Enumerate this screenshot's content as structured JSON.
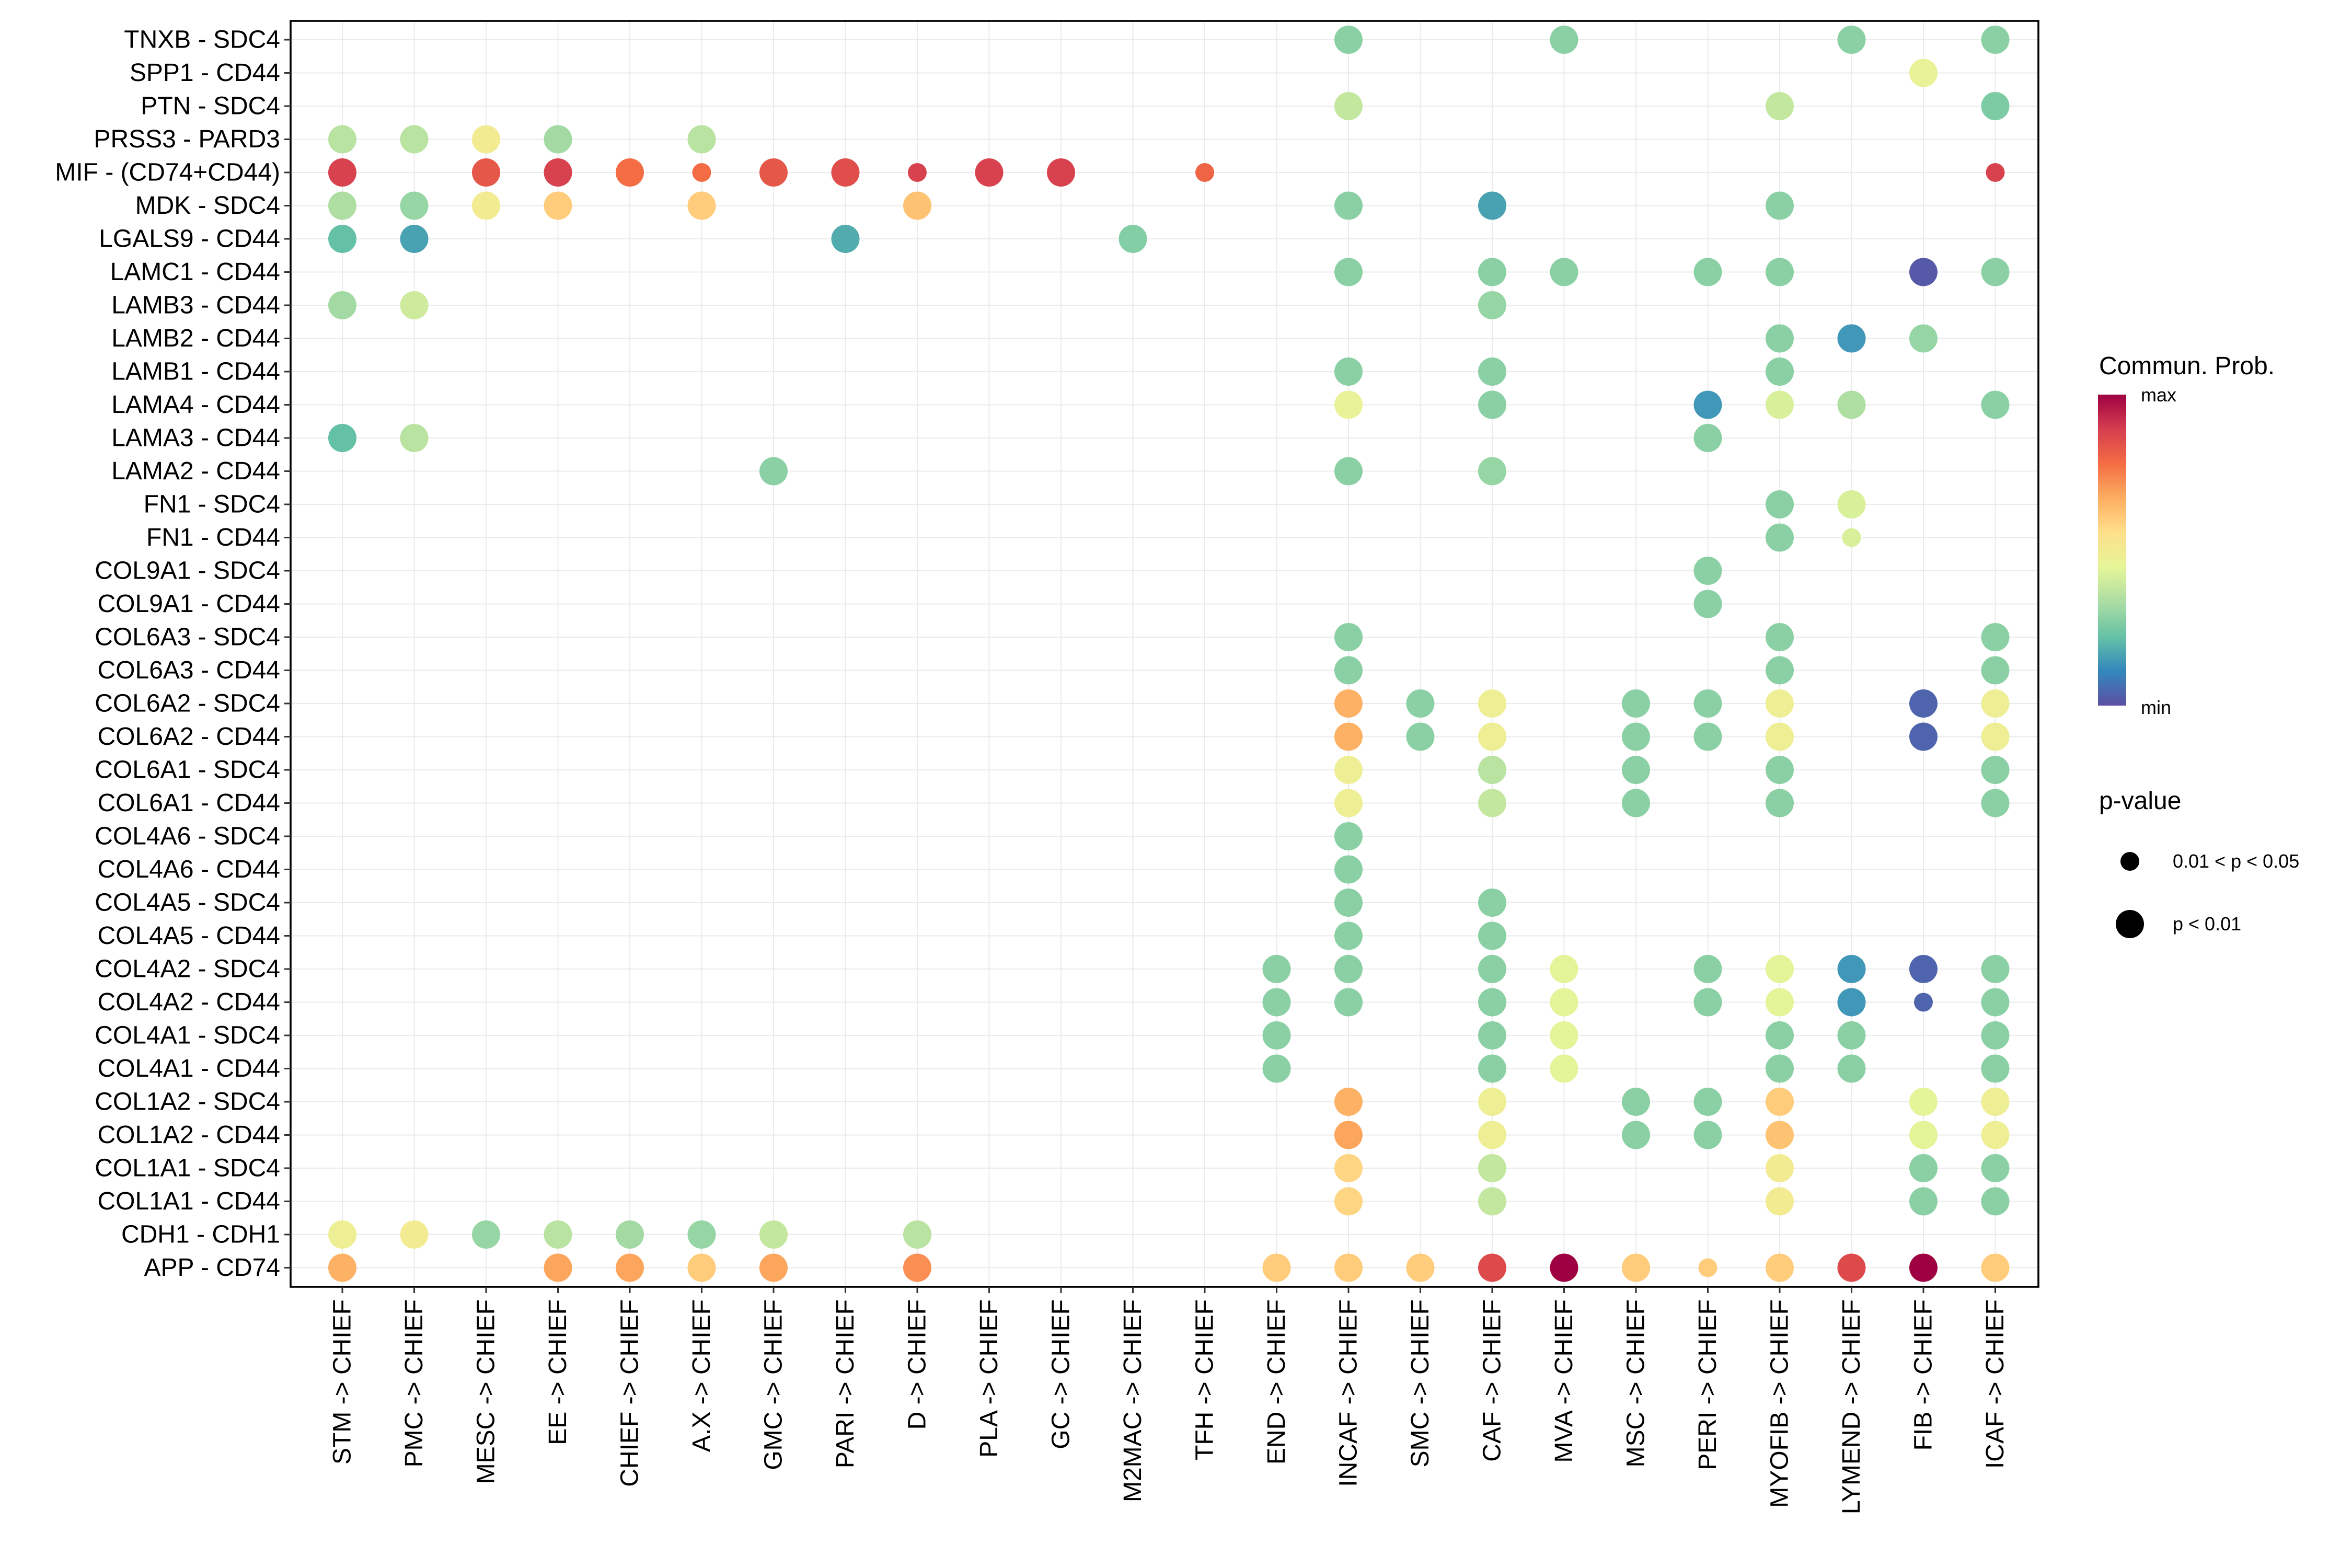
{
  "chart_data": {
    "type": "scatter",
    "subtype": "dot-plot",
    "title": "",
    "xlabel": "",
    "ylabel": "",
    "grid": true,
    "x_categories": [
      "STM -> CHIEF",
      "PMC -> CHIEF",
      "MESC -> CHIEF",
      "EE -> CHIEF",
      "CHIEF -> CHIEF",
      "A.X -> CHIEF",
      "GMC -> CHIEF",
      "PARI -> CHIEF",
      "D -> CHIEF",
      "PLA -> CHIEF",
      "GC -> CHIEF",
      "M2MAC -> CHIEF",
      "TFH -> CHIEF",
      "END -> CHIEF",
      "INCAF -> CHIEF",
      "SMC -> CHIEF",
      "CAF -> CHIEF",
      "MVA -> CHIEF",
      "MSC -> CHIEF",
      "PERI -> CHIEF",
      "MYOFIB -> CHIEF",
      "LYMEND -> CHIEF",
      "FIB -> CHIEF",
      "ICAF -> CHIEF"
    ],
    "y_categories": [
      "TNXB - SDC4",
      "SPP1 - CD44",
      "PTN - SDC4",
      "PRSS3 - PARD3",
      "MIF - (CD74+CD44)",
      "MDK - SDC4",
      "LGALS9 - CD44",
      "LAMC1 - CD44",
      "LAMB3 - CD44",
      "LAMB2 - CD44",
      "LAMB1 - CD44",
      "LAMA4 - CD44",
      "LAMA3 - CD44",
      "LAMA2 - CD44",
      "FN1 - SDC4",
      "FN1 - CD44",
      "COL9A1 - SDC4",
      "COL9A1 - CD44",
      "COL6A3 - SDC4",
      "COL6A3 - CD44",
      "COL6A2 - SDC4",
      "COL6A2 - CD44",
      "COL6A1 - SDC4",
      "COL6A1 - CD44",
      "COL4A6 - SDC4",
      "COL4A6 - CD44",
      "COL4A5 - SDC4",
      "COL4A5 - CD44",
      "COL4A2 - SDC4",
      "COL4A2 - CD44",
      "COL4A1 - SDC4",
      "COL4A1 - CD44",
      "COL1A2 - SDC4",
      "COL1A2 - CD44",
      "COL1A1 - SDC4",
      "COL1A1 - CD44",
      "CDH1 - CDH1",
      "APP - CD74"
    ],
    "point_fields": [
      "x_index",
      "y_index",
      "commun_prob_scaled_0_to_1",
      "pvalue_class (1 = p < 0.01, 0 = 0.01 < p < 0.05)"
    ],
    "points": [
      [
        14,
        0,
        0.28,
        1
      ],
      [
        17,
        0,
        0.28,
        1
      ],
      [
        21,
        0,
        0.28,
        1
      ],
      [
        23,
        0,
        0.28,
        1
      ],
      [
        22,
        1,
        0.46,
        1
      ],
      [
        14,
        2,
        0.38,
        1
      ],
      [
        20,
        2,
        0.38,
        1
      ],
      [
        23,
        2,
        0.26,
        1
      ],
      [
        0,
        3,
        0.36,
        1
      ],
      [
        1,
        3,
        0.36,
        1
      ],
      [
        2,
        3,
        0.5,
        1
      ],
      [
        3,
        3,
        0.32,
        1
      ],
      [
        5,
        3,
        0.36,
        1
      ],
      [
        0,
        4,
        0.88,
        1
      ],
      [
        2,
        4,
        0.83,
        1
      ],
      [
        3,
        4,
        0.88,
        1
      ],
      [
        4,
        4,
        0.78,
        1
      ],
      [
        5,
        4,
        0.78,
        0
      ],
      [
        6,
        4,
        0.83,
        1
      ],
      [
        7,
        4,
        0.85,
        1
      ],
      [
        8,
        4,
        0.88,
        0
      ],
      [
        9,
        4,
        0.88,
        1
      ],
      [
        10,
        4,
        0.88,
        1
      ],
      [
        12,
        4,
        0.8,
        0
      ],
      [
        23,
        4,
        0.88,
        0
      ],
      [
        0,
        5,
        0.34,
        1
      ],
      [
        1,
        5,
        0.3,
        1
      ],
      [
        2,
        5,
        0.5,
        1
      ],
      [
        3,
        5,
        0.6,
        1
      ],
      [
        5,
        5,
        0.6,
        1
      ],
      [
        8,
        5,
        0.62,
        1
      ],
      [
        14,
        5,
        0.28,
        1
      ],
      [
        16,
        5,
        0.16,
        1
      ],
      [
        20,
        5,
        0.28,
        1
      ],
      [
        0,
        6,
        0.22,
        1
      ],
      [
        1,
        6,
        0.16,
        1
      ],
      [
        7,
        6,
        0.18,
        1
      ],
      [
        11,
        6,
        0.27,
        1
      ],
      [
        14,
        7,
        0.28,
        1
      ],
      [
        16,
        7,
        0.28,
        1
      ],
      [
        17,
        7,
        0.28,
        1
      ],
      [
        19,
        7,
        0.28,
        1
      ],
      [
        20,
        7,
        0.28,
        1
      ],
      [
        22,
        7,
        0.02,
        1
      ],
      [
        23,
        7,
        0.28,
        1
      ],
      [
        0,
        8,
        0.32,
        1
      ],
      [
        1,
        8,
        0.4,
        1
      ],
      [
        16,
        8,
        0.3,
        1
      ],
      [
        20,
        9,
        0.28,
        1
      ],
      [
        21,
        9,
        0.14,
        1
      ],
      [
        22,
        9,
        0.3,
        1
      ],
      [
        14,
        10,
        0.28,
        1
      ],
      [
        16,
        10,
        0.28,
        1
      ],
      [
        20,
        10,
        0.28,
        1
      ],
      [
        14,
        11,
        0.46,
        1
      ],
      [
        16,
        11,
        0.28,
        1
      ],
      [
        19,
        11,
        0.14,
        1
      ],
      [
        20,
        11,
        0.42,
        1
      ],
      [
        21,
        11,
        0.34,
        1
      ],
      [
        23,
        11,
        0.28,
        1
      ],
      [
        0,
        12,
        0.22,
        1
      ],
      [
        1,
        12,
        0.36,
        1
      ],
      [
        19,
        12,
        0.28,
        1
      ],
      [
        6,
        13,
        0.28,
        1
      ],
      [
        14,
        13,
        0.28,
        1
      ],
      [
        16,
        13,
        0.3,
        1
      ],
      [
        20,
        14,
        0.28,
        1
      ],
      [
        21,
        14,
        0.42,
        1
      ],
      [
        20,
        15,
        0.28,
        1
      ],
      [
        21,
        15,
        0.42,
        0
      ],
      [
        19,
        16,
        0.28,
        1
      ],
      [
        19,
        17,
        0.28,
        1
      ],
      [
        14,
        18,
        0.28,
        1
      ],
      [
        20,
        18,
        0.28,
        1
      ],
      [
        23,
        18,
        0.28,
        1
      ],
      [
        14,
        19,
        0.28,
        1
      ],
      [
        20,
        19,
        0.28,
        1
      ],
      [
        23,
        19,
        0.28,
        1
      ],
      [
        14,
        20,
        0.66,
        1
      ],
      [
        15,
        20,
        0.28,
        1
      ],
      [
        16,
        20,
        0.48,
        1
      ],
      [
        18,
        20,
        0.28,
        1
      ],
      [
        19,
        20,
        0.28,
        1
      ],
      [
        20,
        20,
        0.48,
        1
      ],
      [
        22,
        20,
        0.04,
        1
      ],
      [
        23,
        20,
        0.48,
        1
      ],
      [
        14,
        21,
        0.66,
        1
      ],
      [
        15,
        21,
        0.28,
        1
      ],
      [
        16,
        21,
        0.48,
        1
      ],
      [
        18,
        21,
        0.28,
        1
      ],
      [
        19,
        21,
        0.28,
        1
      ],
      [
        20,
        21,
        0.48,
        1
      ],
      [
        22,
        21,
        0.04,
        1
      ],
      [
        23,
        21,
        0.48,
        1
      ],
      [
        14,
        22,
        0.48,
        1
      ],
      [
        16,
        22,
        0.36,
        1
      ],
      [
        18,
        22,
        0.28,
        1
      ],
      [
        20,
        22,
        0.28,
        1
      ],
      [
        23,
        22,
        0.28,
        1
      ],
      [
        14,
        23,
        0.48,
        1
      ],
      [
        16,
        23,
        0.38,
        1
      ],
      [
        18,
        23,
        0.28,
        1
      ],
      [
        20,
        23,
        0.28,
        1
      ],
      [
        23,
        23,
        0.28,
        1
      ],
      [
        14,
        24,
        0.28,
        1
      ],
      [
        14,
        25,
        0.28,
        1
      ],
      [
        14,
        26,
        0.28,
        1
      ],
      [
        16,
        26,
        0.28,
        1
      ],
      [
        14,
        27,
        0.28,
        1
      ],
      [
        16,
        27,
        0.28,
        1
      ],
      [
        13,
        28,
        0.28,
        1
      ],
      [
        14,
        28,
        0.28,
        1
      ],
      [
        16,
        28,
        0.28,
        1
      ],
      [
        17,
        28,
        0.44,
        1
      ],
      [
        19,
        28,
        0.28,
        1
      ],
      [
        20,
        28,
        0.44,
        1
      ],
      [
        21,
        28,
        0.14,
        1
      ],
      [
        22,
        28,
        0.04,
        1
      ],
      [
        23,
        28,
        0.28,
        1
      ],
      [
        13,
        29,
        0.28,
        1
      ],
      [
        14,
        29,
        0.28,
        1
      ],
      [
        16,
        29,
        0.28,
        1
      ],
      [
        17,
        29,
        0.44,
        1
      ],
      [
        19,
        29,
        0.28,
        1
      ],
      [
        20,
        29,
        0.44,
        1
      ],
      [
        21,
        29,
        0.14,
        1
      ],
      [
        22,
        29,
        0.04,
        0
      ],
      [
        23,
        29,
        0.28,
        1
      ],
      [
        13,
        30,
        0.28,
        1
      ],
      [
        16,
        30,
        0.28,
        1
      ],
      [
        17,
        30,
        0.44,
        1
      ],
      [
        20,
        30,
        0.28,
        1
      ],
      [
        21,
        30,
        0.28,
        1
      ],
      [
        23,
        30,
        0.28,
        1
      ],
      [
        13,
        31,
        0.28,
        1
      ],
      [
        16,
        31,
        0.28,
        1
      ],
      [
        17,
        31,
        0.44,
        1
      ],
      [
        20,
        31,
        0.28,
        1
      ],
      [
        21,
        31,
        0.28,
        1
      ],
      [
        23,
        31,
        0.28,
        1
      ],
      [
        14,
        32,
        0.66,
        1
      ],
      [
        16,
        32,
        0.48,
        1
      ],
      [
        18,
        32,
        0.28,
        1
      ],
      [
        19,
        32,
        0.28,
        1
      ],
      [
        20,
        32,
        0.6,
        1
      ],
      [
        22,
        32,
        0.44,
        1
      ],
      [
        23,
        32,
        0.48,
        1
      ],
      [
        14,
        33,
        0.68,
        1
      ],
      [
        16,
        33,
        0.48,
        1
      ],
      [
        18,
        33,
        0.28,
        1
      ],
      [
        19,
        33,
        0.28,
        1
      ],
      [
        20,
        33,
        0.62,
        1
      ],
      [
        22,
        33,
        0.44,
        1
      ],
      [
        23,
        33,
        0.48,
        1
      ],
      [
        14,
        34,
        0.58,
        1
      ],
      [
        16,
        34,
        0.38,
        1
      ],
      [
        20,
        34,
        0.5,
        1
      ],
      [
        22,
        34,
        0.28,
        1
      ],
      [
        23,
        34,
        0.28,
        1
      ],
      [
        14,
        35,
        0.58,
        1
      ],
      [
        16,
        35,
        0.38,
        1
      ],
      [
        20,
        35,
        0.5,
        1
      ],
      [
        22,
        35,
        0.28,
        1
      ],
      [
        23,
        35,
        0.28,
        1
      ],
      [
        0,
        36,
        0.48,
        1
      ],
      [
        1,
        36,
        0.5,
        1
      ],
      [
        2,
        36,
        0.3,
        1
      ],
      [
        3,
        36,
        0.36,
        1
      ],
      [
        4,
        36,
        0.32,
        1
      ],
      [
        5,
        36,
        0.3,
        1
      ],
      [
        6,
        36,
        0.38,
        1
      ],
      [
        8,
        36,
        0.36,
        1
      ],
      [
        0,
        37,
        0.66,
        1
      ],
      [
        3,
        37,
        0.68,
        1
      ],
      [
        4,
        37,
        0.68,
        1
      ],
      [
        5,
        37,
        0.6,
        1
      ],
      [
        6,
        37,
        0.68,
        1
      ],
      [
        8,
        37,
        0.72,
        1
      ],
      [
        13,
        37,
        0.6,
        1
      ],
      [
        14,
        37,
        0.6,
        1
      ],
      [
        15,
        37,
        0.6,
        1
      ],
      [
        16,
        37,
        0.86,
        1
      ],
      [
        17,
        37,
        1.0,
        1
      ],
      [
        18,
        37,
        0.6,
        1
      ],
      [
        19,
        37,
        0.6,
        0
      ],
      [
        20,
        37,
        0.6,
        1
      ],
      [
        21,
        37,
        0.86,
        1
      ],
      [
        22,
        37,
        1.0,
        1
      ],
      [
        23,
        37,
        0.6,
        1
      ]
    ],
    "legend": {
      "color_title": "Commun. Prob.",
      "color_max_label": "max",
      "color_min_label": "min",
      "colormap_stops": [
        "#9E0142",
        "#D53E4F",
        "#F46D43",
        "#FDAE61",
        "#FEE08B",
        "#E6F598",
        "#ABDDA4",
        "#66C2A5",
        "#3288BD",
        "#5E4FA2"
      ],
      "size_title": "p-value",
      "size_labels": [
        "0.01 < p < 0.05",
        "p < 0.01"
      ],
      "position": "right"
    }
  }
}
